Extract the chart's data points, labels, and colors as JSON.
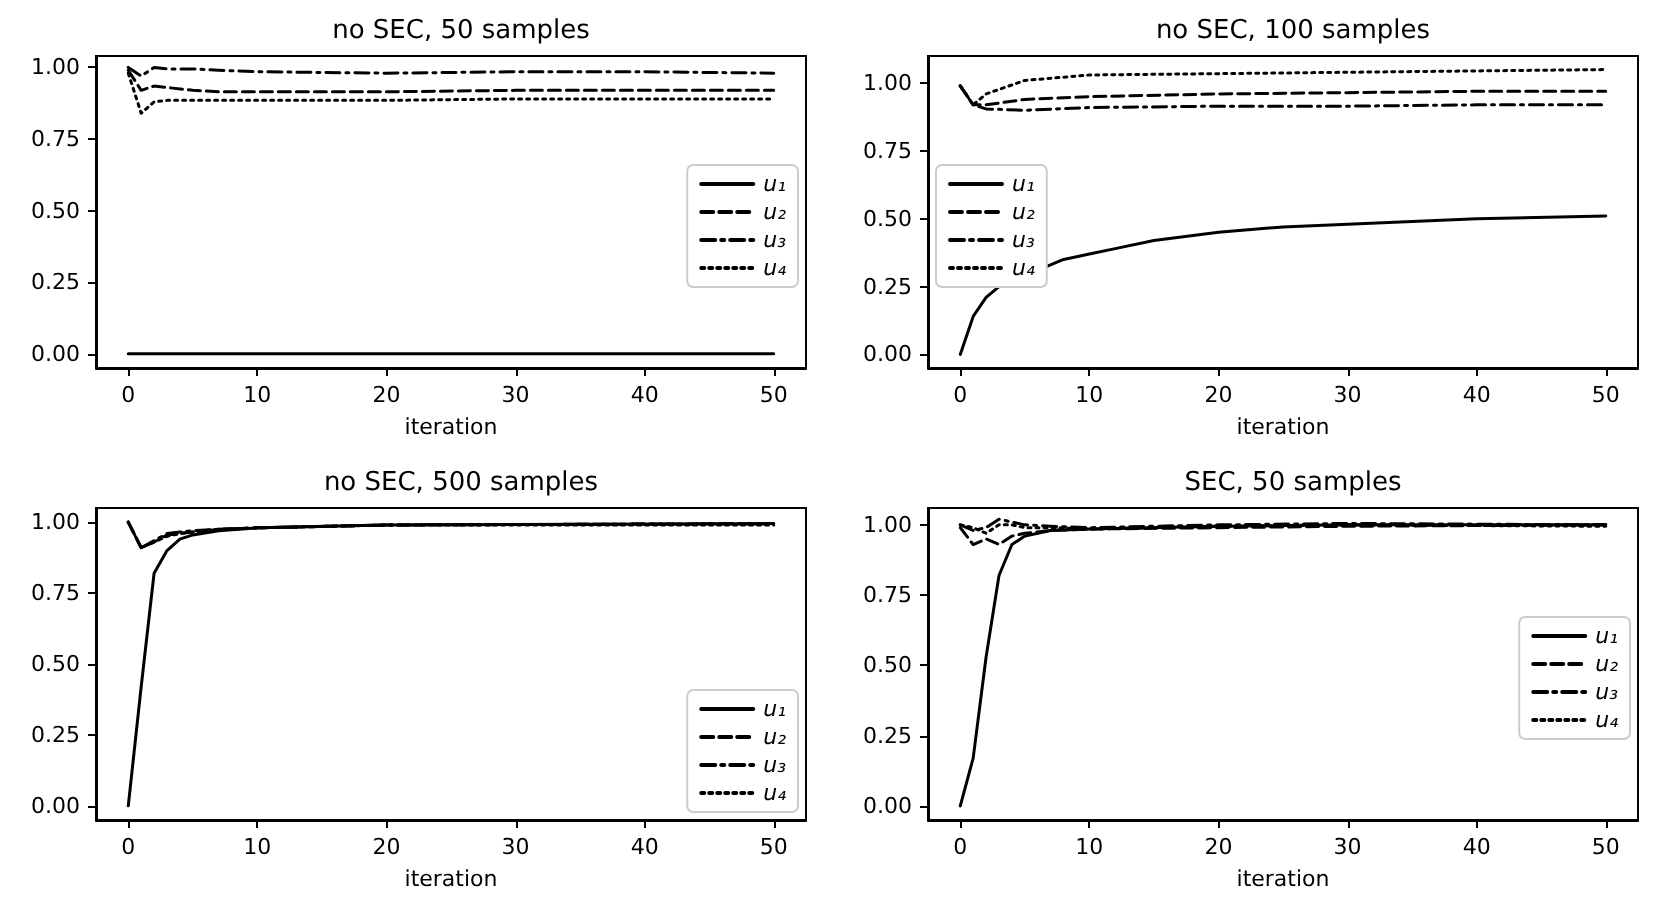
{
  "chart_data": [
    {
      "type": "line",
      "title": "no SEC, 50 samples",
      "xlabel": "iteration",
      "xlim": [
        -2.5,
        52.5
      ],
      "ylim": [
        -0.05,
        1.04
      ],
      "xticks": [
        0,
        10,
        20,
        30,
        40,
        50
      ],
      "yticks": [
        {
          "value": 0,
          "label": "0.00"
        },
        {
          "value": 0.25,
          "label": "0.25"
        },
        {
          "value": 0.5,
          "label": "0.50"
        },
        {
          "value": 0.75,
          "label": "0.75"
        },
        {
          "value": 1,
          "label": "1.00"
        }
      ],
      "grid": false,
      "legend": "right",
      "series": [
        {
          "name": "u₁",
          "color": "#000000",
          "line_style": "solid",
          "x": [
            0,
            1,
            50
          ],
          "values": [
            0.0,
            0.0,
            0.0
          ]
        },
        {
          "name": "u₂",
          "color": "#000000",
          "line_style": "dashed",
          "x": [
            0,
            1,
            2,
            3,
            5,
            7,
            10,
            20,
            30,
            40,
            50
          ],
          "values": [
            0.99,
            0.92,
            0.935,
            0.93,
            0.92,
            0.915,
            0.915,
            0.915,
            0.92,
            0.92,
            0.92
          ]
        },
        {
          "name": "u₃",
          "color": "#000000",
          "line_style": "dashdot",
          "x": [
            0,
            1,
            2,
            3,
            5,
            7,
            10,
            20,
            30,
            40,
            50
          ],
          "values": [
            1.0,
            0.97,
            1.0,
            0.995,
            0.995,
            0.99,
            0.985,
            0.98,
            0.985,
            0.985,
            0.98
          ]
        },
        {
          "name": "u₄",
          "color": "#000000",
          "line_style": "dotted",
          "x": [
            0,
            1,
            2,
            3,
            5,
            7,
            10,
            20,
            30,
            40,
            50
          ],
          "values": [
            0.98,
            0.84,
            0.88,
            0.885,
            0.885,
            0.885,
            0.885,
            0.885,
            0.89,
            0.89,
            0.89
          ]
        }
      ]
    },
    {
      "type": "line",
      "title": "no SEC, 100 samples",
      "xlabel": "iteration",
      "xlim": [
        -2.5,
        52.5
      ],
      "ylim": [
        -0.05,
        1.1
      ],
      "xticks": [
        0,
        10,
        20,
        30,
        40,
        50
      ],
      "yticks": [
        {
          "value": 0,
          "label": "0.00"
        },
        {
          "value": 0.25,
          "label": "0.25"
        },
        {
          "value": 0.5,
          "label": "0.50"
        },
        {
          "value": 0.75,
          "label": "0.75"
        },
        {
          "value": 1,
          "label": "1.00"
        }
      ],
      "grid": false,
      "legend": "left",
      "series": [
        {
          "name": "u₁",
          "color": "#000000",
          "line_style": "solid",
          "x": [
            0,
            1,
            2,
            3,
            8,
            10,
            12,
            15,
            20,
            25,
            30,
            40,
            50
          ],
          "values": [
            0.0,
            0.14,
            0.21,
            0.25,
            0.35,
            0.37,
            0.39,
            0.42,
            0.45,
            0.47,
            0.48,
            0.5,
            0.51
          ]
        },
        {
          "name": "u₂",
          "color": "#000000",
          "line_style": "dashed",
          "x": [
            0,
            1,
            2,
            5,
            10,
            20,
            30,
            40,
            50
          ],
          "values": [
            0.99,
            0.92,
            0.92,
            0.94,
            0.95,
            0.96,
            0.965,
            0.97,
            0.97
          ]
        },
        {
          "name": "u₃",
          "color": "#000000",
          "line_style": "dashdot",
          "x": [
            0,
            1,
            2,
            5,
            10,
            20,
            30,
            40,
            50
          ],
          "values": [
            0.99,
            0.92,
            0.905,
            0.9,
            0.91,
            0.915,
            0.915,
            0.92,
            0.92
          ]
        },
        {
          "name": "u₄",
          "color": "#000000",
          "line_style": "dotted",
          "x": [
            0,
            1,
            2,
            5,
            10,
            20,
            30,
            40,
            50
          ],
          "values": [
            0.99,
            0.92,
            0.96,
            1.01,
            1.03,
            1.035,
            1.04,
            1.045,
            1.05
          ]
        }
      ]
    },
    {
      "type": "line",
      "title": "no SEC, 500 samples",
      "xlabel": "iteration",
      "xlim": [
        -2.5,
        52.5
      ],
      "ylim": [
        -0.05,
        1.05
      ],
      "xticks": [
        0,
        10,
        20,
        30,
        40,
        50
      ],
      "yticks": [
        {
          "value": 0,
          "label": "0.00"
        },
        {
          "value": 0.25,
          "label": "0.25"
        },
        {
          "value": 0.5,
          "label": "0.50"
        },
        {
          "value": 0.75,
          "label": "0.75"
        },
        {
          "value": 1,
          "label": "1.00"
        }
      ],
      "grid": false,
      "legend": "bottom right",
      "series": [
        {
          "name": "u₁",
          "color": "#000000",
          "line_style": "solid",
          "x": [
            0,
            1,
            2,
            3,
            4,
            5,
            7,
            10,
            20,
            50
          ],
          "values": [
            0.0,
            0.42,
            0.82,
            0.9,
            0.94,
            0.955,
            0.97,
            0.98,
            0.99,
            0.995
          ]
        },
        {
          "name": "u₂",
          "color": "#000000",
          "line_style": "dashed",
          "x": [
            0,
            1,
            2,
            3,
            4,
            5,
            7,
            10,
            20,
            50
          ],
          "values": [
            1.0,
            0.91,
            0.93,
            0.955,
            0.96,
            0.965,
            0.975,
            0.98,
            0.99,
            0.995
          ]
        },
        {
          "name": "u₃",
          "color": "#000000",
          "line_style": "dashdot",
          "x": [
            0,
            1,
            2,
            3,
            4,
            5,
            7,
            10,
            20,
            50
          ],
          "values": [
            1.0,
            0.91,
            0.935,
            0.96,
            0.965,
            0.97,
            0.975,
            0.98,
            0.99,
            0.995
          ]
        },
        {
          "name": "u₄",
          "color": "#000000",
          "line_style": "dotted",
          "x": [
            0,
            1,
            2,
            3,
            4,
            5,
            7,
            10,
            20,
            50
          ],
          "values": [
            1.0,
            0.91,
            0.93,
            0.95,
            0.96,
            0.965,
            0.975,
            0.98,
            0.99,
            0.99
          ]
        }
      ]
    },
    {
      "type": "line",
      "title": "SEC, 50 samples",
      "xlabel": "iteration",
      "xlim": [
        -2.5,
        52.5
      ],
      "ylim": [
        -0.05,
        1.06
      ],
      "xticks": [
        0,
        10,
        20,
        30,
        40,
        50
      ],
      "yticks": [
        {
          "value": 0,
          "label": "0.00"
        },
        {
          "value": 0.25,
          "label": "0.25"
        },
        {
          "value": 0.5,
          "label": "0.50"
        },
        {
          "value": 0.75,
          "label": "0.75"
        },
        {
          "value": 1,
          "label": "1.00"
        }
      ],
      "grid": false,
      "legend": "right",
      "series": [
        {
          "name": "u₁",
          "color": "#000000",
          "line_style": "solid",
          "x": [
            0,
            1,
            2,
            3,
            4,
            5,
            7,
            10,
            20,
            30,
            50
          ],
          "values": [
            0.0,
            0.17,
            0.53,
            0.82,
            0.93,
            0.96,
            0.98,
            0.985,
            0.995,
            1.0,
            1.0
          ]
        },
        {
          "name": "u₂",
          "color": "#000000",
          "line_style": "dashed",
          "x": [
            0,
            1,
            2,
            3,
            4,
            5,
            7,
            10,
            20,
            30,
            50
          ],
          "values": [
            0.99,
            0.93,
            0.95,
            0.93,
            0.96,
            0.97,
            0.98,
            0.985,
            0.99,
            0.995,
            1.0
          ]
        },
        {
          "name": "u₃",
          "color": "#000000",
          "line_style": "dashdot",
          "x": [
            0,
            1,
            2,
            3,
            4,
            5,
            7,
            10,
            20,
            30,
            50
          ],
          "values": [
            1.0,
            0.98,
            0.99,
            1.02,
            1.01,
            1.0,
            0.995,
            0.99,
            1.0,
            1.005,
            1.0
          ]
        },
        {
          "name": "u₄",
          "color": "#000000",
          "line_style": "dotted",
          "x": [
            0,
            1,
            2,
            3,
            4,
            5,
            7,
            10,
            20,
            30,
            50
          ],
          "values": [
            1.0,
            0.99,
            0.97,
            1.0,
            1.0,
            0.99,
            0.99,
            0.985,
            0.995,
            1.0,
            0.995
          ]
        }
      ]
    }
  ]
}
